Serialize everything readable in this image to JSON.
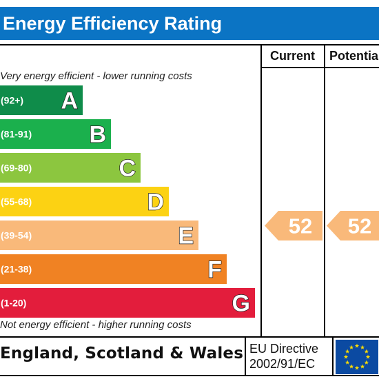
{
  "header": {
    "title": "Energy Efficiency Rating"
  },
  "columns": {
    "current": "Current",
    "potential": "Potential"
  },
  "captions": {
    "top": "Very energy efficient - lower running costs",
    "bottom": "Not energy efficient - higher running costs"
  },
  "chart_data": {
    "type": "bar",
    "categories": [
      "A",
      "B",
      "C",
      "D",
      "E",
      "F",
      "G"
    ],
    "ranges": [
      "(92+)",
      "(81-91)",
      "(69-80)",
      "(55-68)",
      "(39-54)",
      "(21-38)",
      "(1-20)"
    ],
    "colors": [
      "#0f8c4a",
      "#1bb04d",
      "#8cc63f",
      "#fcd213",
      "#f9b97a",
      "#f08223",
      "#e31d3c"
    ],
    "current": {
      "value": 52,
      "band": "E",
      "color": "#f9b97a"
    },
    "potential": {
      "value": 52,
      "band": "E",
      "color": "#f9b97a"
    }
  },
  "footer": {
    "region": "England, Scotland & Wales",
    "directive_line1": "EU Directive",
    "directive_line2": "2002/91/EC"
  },
  "flag": {
    "blue": "#0b4aa2",
    "stars": "#ffdd00"
  }
}
